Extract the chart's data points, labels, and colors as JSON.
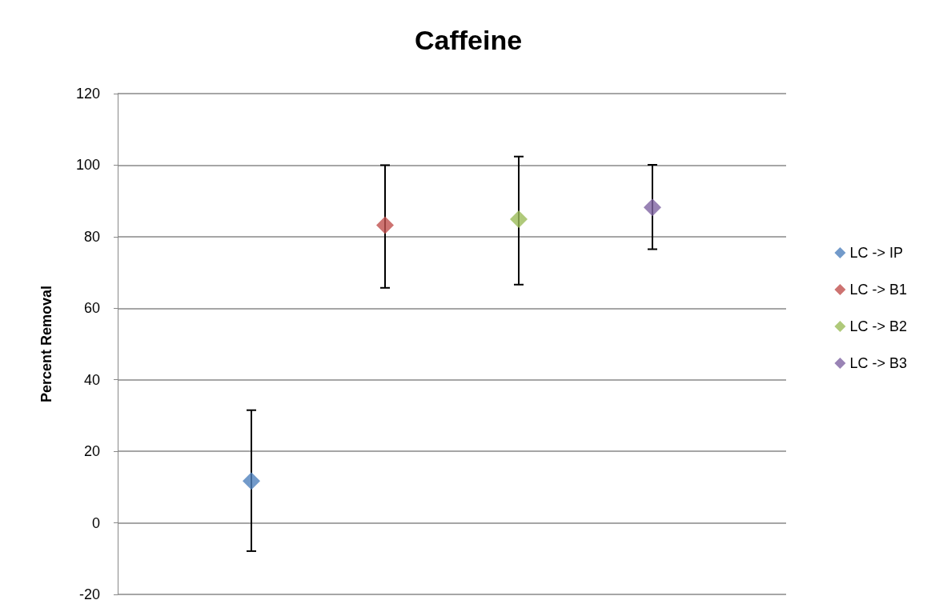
{
  "chart_data": {
    "type": "scatter",
    "title": "Caffeine",
    "ylabel": "Percent Removal",
    "categories": [
      null,
      null,
      null,
      null
    ],
    "series": [
      {
        "name": "LC -> IP",
        "color": "#4f81bd",
        "values": [
          11.7,
          null,
          null,
          null
        ],
        "errors": [
          [
            -7.9,
            31.5
          ],
          null,
          null,
          null
        ]
      },
      {
        "name": "LC -> B1",
        "color": "#c0504d",
        "values": [
          null,
          83.2,
          null,
          null
        ],
        "errors": [
          null,
          [
            65.7,
            100
          ],
          null,
          null
        ]
      },
      {
        "name": "LC -> B2",
        "color": "#9bbb59",
        "values": [
          null,
          null,
          84.9,
          null
        ],
        "errors": [
          null,
          null,
          [
            66.6,
            102.4
          ],
          null
        ]
      },
      {
        "name": "LC -> B3",
        "color": "#8064a2",
        "values": [
          null,
          null,
          null,
          88.2
        ],
        "errors": [
          null,
          null,
          null,
          [
            76.5,
            100.1
          ]
        ]
      }
    ],
    "ylim": [
      -20,
      120
    ],
    "yticks": [
      -20,
      0,
      20,
      40,
      60,
      80,
      100,
      120
    ],
    "grid": "y",
    "legend": "right",
    "marker": "diamond"
  }
}
